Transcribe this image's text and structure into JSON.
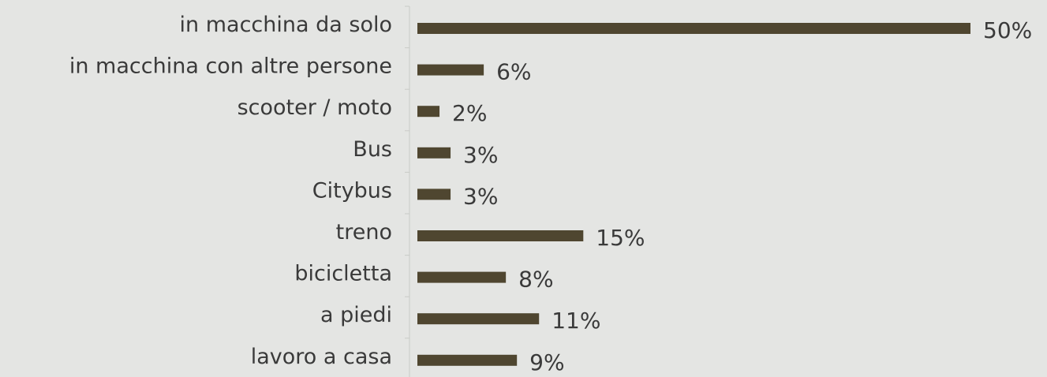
{
  "chart_data": {
    "type": "bar",
    "orientation": "horizontal",
    "categories": [
      "in macchina da solo",
      "in macchina con altre persone",
      "scooter / moto",
      "Bus",
      "Citybus",
      "treno",
      "bicicletta",
      "a piedi",
      "lavoro a casa"
    ],
    "values": [
      50,
      6,
      2,
      3,
      3,
      15,
      8,
      11,
      9
    ],
    "value_labels": [
      "50%",
      "6%",
      "2%",
      "3%",
      "3%",
      "15%",
      "8%",
      "11%",
      "9%"
    ],
    "unit": "%",
    "title": "",
    "xlabel": "",
    "ylabel": "",
    "grid": false,
    "legend": "none",
    "bar_color": "#4f4630",
    "background_color": "#e4e5e3",
    "text_color": "#3a3a3a"
  }
}
